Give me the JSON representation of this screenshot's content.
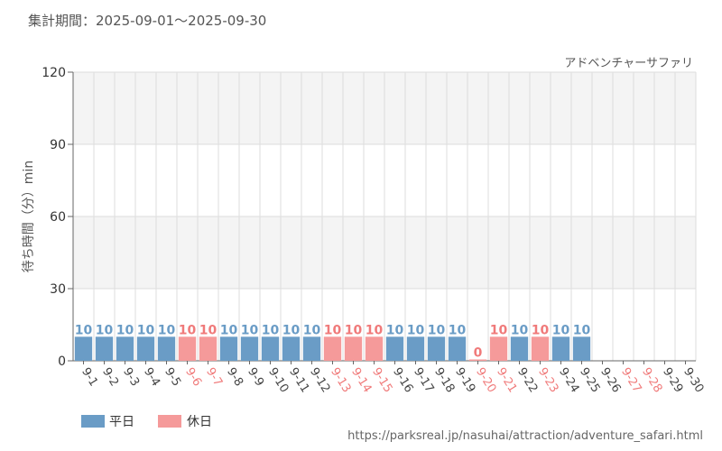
{
  "header": {
    "period_label": "集計期間：2025-09-01～2025-09-30"
  },
  "colors": {
    "weekday": "#6a9cc6",
    "holiday": "#f59a9a",
    "weekday_label": "#6a9cc6",
    "holiday_label": "#f07a7a",
    "grid": "#dddddd",
    "band": "#f4f4f4"
  },
  "legend": {
    "weekday": "平日",
    "holiday": "休日"
  },
  "source_url": "https://parksreal.jp/nasuhai/attraction/adventure_safari.html",
  "chart_data": {
    "type": "bar",
    "subtitle": "アドベンチャーサファリ",
    "ylabel": "待ち時間（分）min",
    "ylim": [
      0,
      120
    ],
    "yticks": [
      0,
      30,
      60,
      90,
      120
    ],
    "grid": true,
    "legend_position": "bottom-left",
    "categories": [
      "9-1",
      "9-2",
      "9-3",
      "9-4",
      "9-5",
      "9-6",
      "9-7",
      "9-8",
      "9-9",
      "9-10",
      "9-11",
      "9-12",
      "9-13",
      "9-14",
      "9-15",
      "9-16",
      "9-17",
      "9-18",
      "9-19",
      "9-20",
      "9-21",
      "9-22",
      "9-23",
      "9-24",
      "9-25",
      "9-26",
      "9-27",
      "9-28",
      "9-29",
      "9-30"
    ],
    "values": [
      10,
      10,
      10,
      10,
      10,
      10,
      10,
      10,
      10,
      10,
      10,
      10,
      10,
      10,
      10,
      10,
      10,
      10,
      10,
      0,
      10,
      10,
      10,
      10,
      10,
      null,
      null,
      null,
      null,
      null
    ],
    "day_type": [
      "weekday",
      "weekday",
      "weekday",
      "weekday",
      "weekday",
      "holiday",
      "holiday",
      "weekday",
      "weekday",
      "weekday",
      "weekday",
      "weekday",
      "holiday",
      "holiday",
      "holiday",
      "weekday",
      "weekday",
      "weekday",
      "weekday",
      "holiday",
      "holiday",
      "weekday",
      "holiday",
      "weekday",
      "weekday",
      "weekday",
      "holiday",
      "holiday",
      "weekday",
      "weekday"
    ]
  }
}
